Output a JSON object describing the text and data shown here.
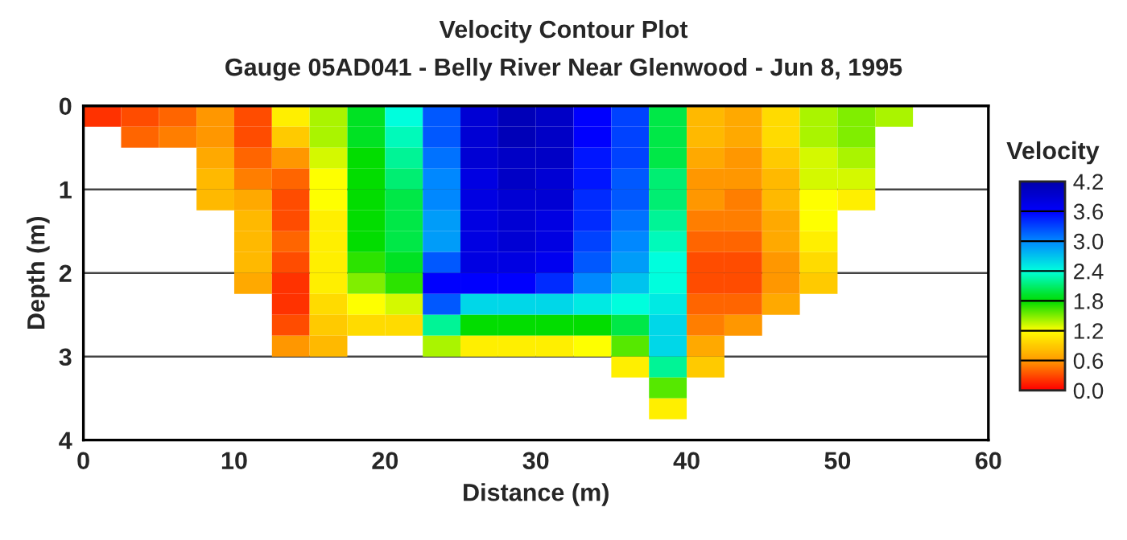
{
  "chart_data": {
    "type": "heatmap",
    "title": "Velocity Contour Plot",
    "subtitle": "Gauge 05AD041 - Belly River Near Glenwood - Jun 8, 1995",
    "xlabel": "Distance (m)",
    "ylabel": "Depth (m)",
    "clabel": "Velocity",
    "x": [
      1.25,
      3.75,
      6.25,
      8.75,
      11.25,
      13.75,
      16.25,
      18.75,
      21.25,
      23.75,
      26.25,
      28.75,
      31.25,
      33.75,
      36.25,
      38.75,
      41.25,
      43.75,
      46.25,
      48.75,
      51.25,
      53.75,
      56.25,
      58.75
    ],
    "y": [
      0.125,
      0.375,
      0.625,
      0.875,
      1.125,
      1.375,
      1.625,
      1.875,
      2.125,
      2.375,
      2.625,
      2.875,
      3.125,
      3.375,
      3.625
    ],
    "xlim": [
      0,
      60
    ],
    "xticks": [
      0,
      10,
      20,
      30,
      40,
      50,
      60
    ],
    "ylim": [
      4,
      0
    ],
    "yticks": [
      0,
      1,
      2,
      3,
      4
    ],
    "clim": [
      0,
      4.2
    ],
    "cticks": [
      {
        "value": 0,
        "label": "0.0"
      },
      {
        "value": 0.6,
        "label": "0.6"
      },
      {
        "value": 1.2,
        "label": "1.2"
      },
      {
        "value": 1.8,
        "label": "1.8"
      },
      {
        "value": 2.4,
        "label": "2.4"
      },
      {
        "value": 3.0,
        "label": "3.0"
      },
      {
        "value": 3.6,
        "label": "3.6"
      },
      {
        "value": 4.2,
        "label": "4.2"
      }
    ],
    "grid": "y",
    "cells": [
      [
        0.2,
        0.3,
        0.4,
        0.6,
        0.3,
        1.1,
        1.4,
        1.9,
        2.4,
        3.2,
        3.9,
        4.1,
        4.0,
        3.6,
        3.3,
        2.0,
        0.8,
        0.7,
        1.0,
        1.4,
        1.5,
        1.4,
        null,
        null
      ],
      [
        null,
        0.4,
        0.5,
        0.6,
        0.3,
        0.9,
        1.4,
        1.9,
        2.3,
        3.2,
        3.9,
        4.1,
        4.0,
        3.6,
        3.3,
        2.0,
        0.8,
        0.7,
        1.0,
        1.4,
        1.5,
        null,
        null,
        null
      ],
      [
        null,
        null,
        null,
        0.7,
        0.4,
        0.6,
        1.3,
        1.8,
        2.2,
        3.1,
        3.9,
        4.0,
        4.0,
        3.5,
        3.3,
        2.0,
        0.7,
        0.6,
        0.9,
        1.3,
        1.4,
        null,
        null,
        null
      ],
      [
        null,
        null,
        null,
        0.8,
        0.5,
        0.4,
        1.2,
        1.8,
        2.1,
        3.0,
        3.8,
        4.0,
        3.9,
        3.5,
        3.2,
        2.1,
        0.6,
        0.6,
        0.8,
        1.3,
        1.3,
        null,
        null,
        null
      ],
      [
        null,
        null,
        null,
        0.8,
        0.7,
        0.3,
        1.2,
        1.8,
        2.0,
        3.0,
        3.8,
        3.9,
        3.9,
        3.4,
        3.2,
        2.1,
        0.6,
        0.5,
        0.8,
        1.2,
        1.1,
        null,
        null,
        null
      ],
      [
        null,
        null,
        null,
        null,
        0.8,
        0.3,
        1.1,
        1.8,
        2.0,
        2.9,
        3.8,
        3.9,
        3.8,
        3.4,
        3.1,
        2.2,
        0.5,
        0.5,
        0.7,
        1.2,
        null,
        null,
        null,
        null
      ],
      [
        null,
        null,
        null,
        null,
        0.8,
        0.4,
        1.1,
        1.8,
        2.0,
        2.9,
        3.8,
        3.9,
        3.8,
        3.3,
        3.0,
        2.3,
        0.4,
        0.4,
        0.7,
        1.1,
        null,
        null,
        null,
        null
      ],
      [
        null,
        null,
        null,
        null,
        0.8,
        0.3,
        1.1,
        1.7,
        1.9,
        3.2,
        3.8,
        3.8,
        3.7,
        3.2,
        2.9,
        2.4,
        0.3,
        0.3,
        0.6,
        1.0,
        null,
        null,
        null,
        null
      ],
      [
        null,
        null,
        null,
        null,
        0.7,
        0.2,
        1.1,
        1.5,
        1.7,
        3.6,
        3.6,
        3.6,
        3.4,
        3.0,
        2.7,
        2.4,
        0.3,
        0.3,
        0.6,
        0.9,
        null,
        null,
        null,
        null
      ],
      [
        null,
        null,
        null,
        null,
        null,
        0.2,
        1.0,
        1.2,
        1.3,
        3.2,
        2.6,
        2.6,
        2.6,
        2.5,
        2.4,
        2.5,
        0.4,
        0.4,
        0.7,
        null,
        null,
        null,
        null,
        null
      ],
      [
        null,
        null,
        null,
        null,
        null,
        0.3,
        0.9,
        1.0,
        1.0,
        2.2,
        1.8,
        1.8,
        1.8,
        1.8,
        2.0,
        2.6,
        0.5,
        0.6,
        null,
        null,
        null,
        null,
        null,
        null
      ],
      [
        null,
        null,
        null,
        null,
        null,
        0.6,
        0.8,
        null,
        null,
        1.4,
        1.1,
        1.1,
        1.1,
        1.2,
        1.6,
        2.6,
        0.7,
        null,
        null,
        null,
        null,
        null,
        null,
        null
      ],
      [
        null,
        null,
        null,
        null,
        null,
        null,
        null,
        null,
        null,
        null,
        null,
        null,
        null,
        null,
        1.1,
        2.2,
        0.9,
        null,
        null,
        null,
        null,
        null,
        null,
        null
      ],
      [
        null,
        null,
        null,
        null,
        null,
        null,
        null,
        null,
        null,
        null,
        null,
        null,
        null,
        null,
        null,
        1.6,
        null,
        null,
        null,
        null,
        null,
        null,
        null,
        null
      ],
      [
        null,
        null,
        null,
        null,
        null,
        null,
        null,
        null,
        null,
        null,
        null,
        null,
        null,
        null,
        null,
        1.1,
        null,
        null,
        null,
        null,
        null,
        null,
        null,
        null
      ]
    ]
  }
}
